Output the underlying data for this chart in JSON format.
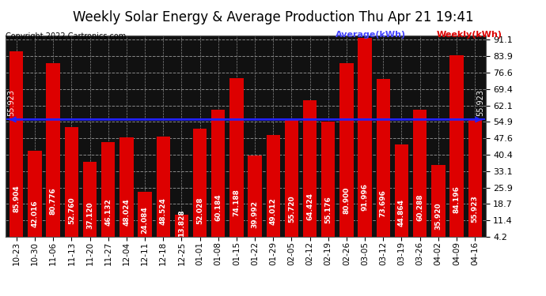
{
  "title": "Weekly Solar Energy & Average Production Thu Apr 21 19:41",
  "copyright": "Copyright 2022 Cartronics.com",
  "categories": [
    "10-23",
    "10-30",
    "11-06",
    "11-13",
    "11-20",
    "11-27",
    "12-04",
    "12-11",
    "12-18",
    "12-25",
    "01-01",
    "01-08",
    "01-15",
    "01-22",
    "01-29",
    "02-05",
    "02-12",
    "02-19",
    "02-26",
    "03-05",
    "03-12",
    "03-19",
    "03-26",
    "04-02",
    "04-09",
    "04-16"
  ],
  "values": [
    85.904,
    42.016,
    80.776,
    52.76,
    37.12,
    46.132,
    48.024,
    24.084,
    48.524,
    13.828,
    52.028,
    60.184,
    74.188,
    39.992,
    49.012,
    55.72,
    64.424,
    55.176,
    80.9,
    91.996,
    73.696,
    44.864,
    60.288,
    35.92,
    84.196,
    55.923
  ],
  "average": 55.923,
  "bar_color": "#dd0000",
  "average_line_color": "#2222ff",
  "plot_bg_color": "#111111",
  "fig_bg_color": "#ffffff",
  "grid_color": "#888888",
  "label_avg_color": "#4444ff",
  "label_weekly_color": "#dd0000",
  "yticks": [
    4.2,
    11.4,
    18.7,
    25.9,
    33.1,
    40.4,
    47.6,
    54.9,
    62.1,
    69.4,
    76.6,
    83.9,
    91.1
  ],
  "ylim_min": 4.2,
  "ylim_max": 93.0,
  "title_fontsize": 12,
  "tick_fontsize": 7.5,
  "bar_label_fontsize": 6.5,
  "copyright_fontsize": 7
}
